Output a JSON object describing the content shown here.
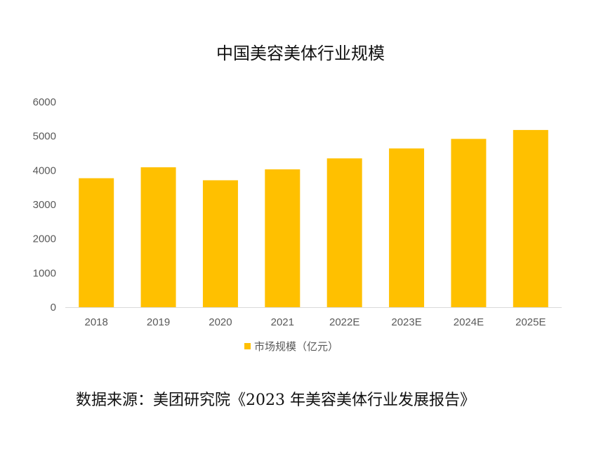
{
  "chart_data": {
    "type": "bar",
    "title": "中国美容美体行业规模",
    "categories": [
      "2018",
      "2019",
      "2020",
      "2021",
      "2022E",
      "2023E",
      "2024E",
      "2025E"
    ],
    "series": [
      {
        "name": "市场规模（亿元）",
        "values": [
          3770,
          4090,
          3710,
          4030,
          4350,
          4640,
          4920,
          5180
        ],
        "color": "#FFC000"
      }
    ],
    "ylim": [
      0,
      6000
    ],
    "yticks": [
      "0",
      "1000",
      "2000",
      "3000",
      "4000",
      "5000",
      "6000"
    ],
    "xlabel": "",
    "ylabel": "",
    "grid": false,
    "legend_position": "bottom"
  },
  "source_note": "数据来源：美团研究院《2023 年美容美体行业发展报告》",
  "colors": {
    "axis": "#d9d9d9",
    "legend_marker": "#FFC000"
  }
}
